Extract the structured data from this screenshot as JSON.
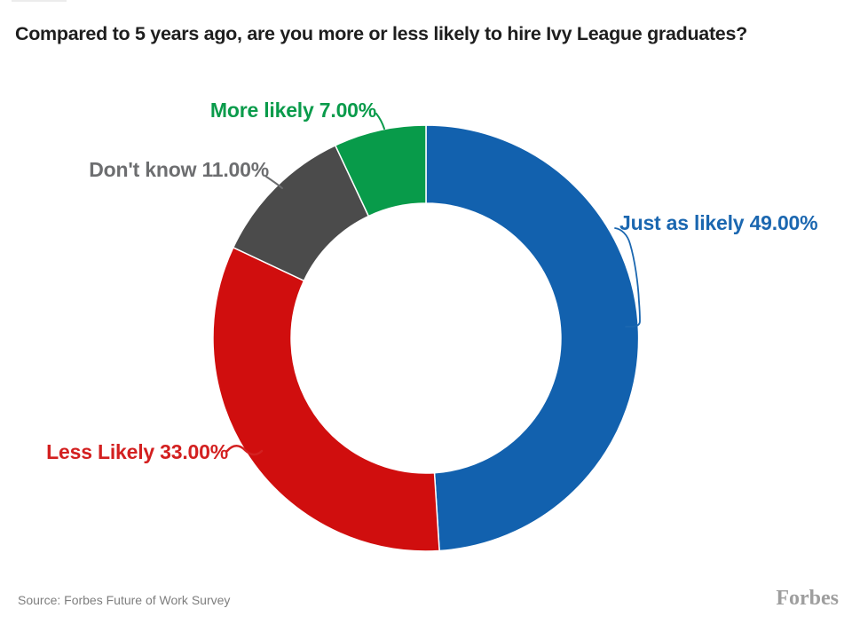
{
  "page": {
    "title": "Compared to 5 years ago, are you more or less likely to hire Ivy League graduates?",
    "source": "Source: Forbes Future of Work Survey",
    "brand": "Forbes"
  },
  "chart_data": {
    "type": "pie",
    "variant": "donut",
    "title": "Compared to 5 years ago, are you more or less likely to hire Ivy League graduates?",
    "unit": "%",
    "total": 100,
    "start_angle": "12 o'clock",
    "direction": "clockwise",
    "inner_radius_ratio": 0.63,
    "legend_position": "callout labels around ring",
    "segments": [
      {
        "id": "just-as-likely",
        "label": "Just as likely",
        "value": 49.0,
        "display": "Just as likely 49.00%",
        "color": "#1261ae",
        "label_color": "#1b67b0"
      },
      {
        "id": "less-likely",
        "label": "Less Likely",
        "value": 33.0,
        "display": "Less Likely 33.00%",
        "color": "#d00e0e",
        "label_color": "#d32020"
      },
      {
        "id": "dont-know",
        "label": "Don't know",
        "value": 11.0,
        "display": "Don't know 11.00%",
        "color": "#4b4b4b",
        "label_color": "#6d6e70"
      },
      {
        "id": "more-likely",
        "label": "More likely",
        "value": 7.0,
        "display": "More likely 7.00%",
        "color": "#089b4a",
        "label_color": "#0a9b4b"
      }
    ]
  }
}
